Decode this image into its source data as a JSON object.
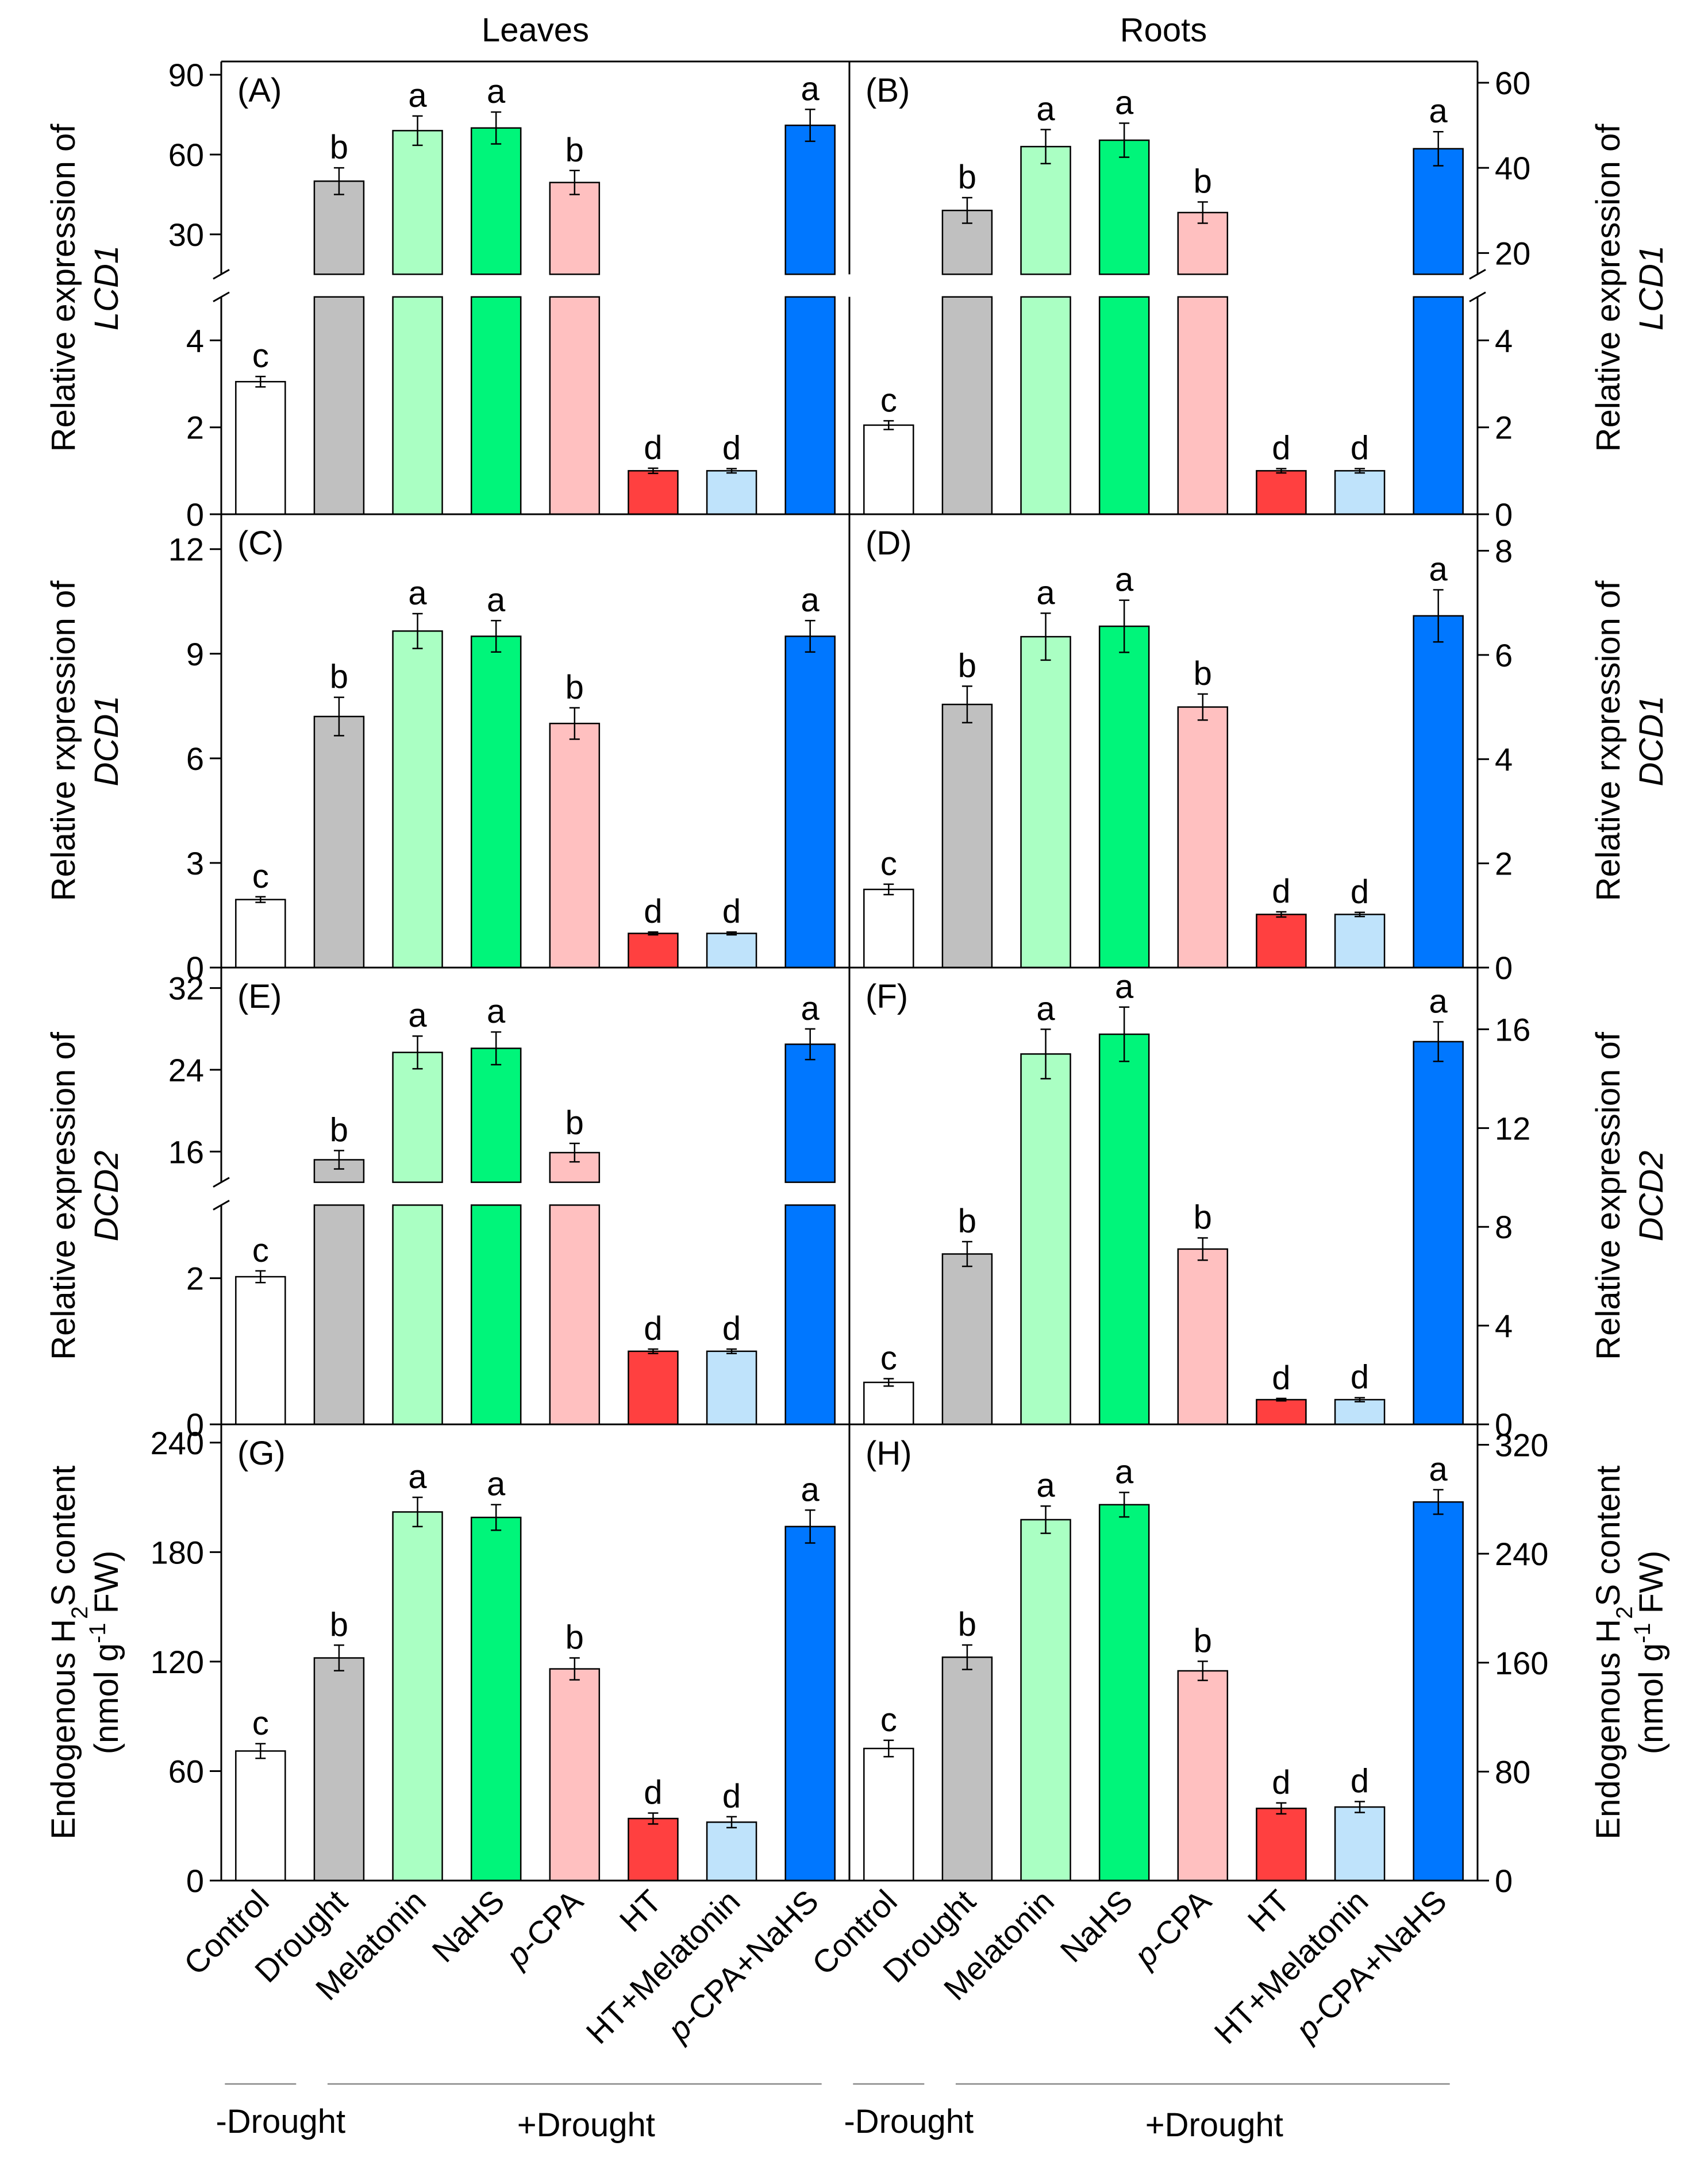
{
  "columns": [
    {
      "id": "leaves",
      "title": "Leaves"
    },
    {
      "id": "roots",
      "title": "Roots"
    }
  ],
  "categories": [
    "Control",
    "Drought",
    "Melatonin",
    "NaHS",
    "p-CPA",
    "HT",
    "HT+Melatonin",
    "p-CPA+NaHS"
  ],
  "category_labels": [
    {
      "prefix": "",
      "italic": "",
      "rest": "Control"
    },
    {
      "prefix": "",
      "italic": "",
      "rest": "Drought"
    },
    {
      "prefix": "",
      "italic": "",
      "rest": "Melatonin"
    },
    {
      "prefix": "",
      "italic": "",
      "rest": "NaHS"
    },
    {
      "prefix": "",
      "italic": "p",
      "rest": "-CPA"
    },
    {
      "prefix": "",
      "italic": "",
      "rest": "HT"
    },
    {
      "prefix": "",
      "italic": "",
      "rest": "HT+Melatonin"
    },
    {
      "prefix": "",
      "italic": "p",
      "rest": "-CPA+NaHS"
    }
  ],
  "colors": [
    "#ffffff",
    "#c0c0c0",
    "#aaffc3",
    "#00f57a",
    "#ffc0c0",
    "#ff4040",
    "#bfe3fb",
    "#0077ff"
  ],
  "groups": [
    {
      "column": "leaves",
      "minus": "-Drought",
      "plus": "+Drought"
    },
    {
      "column": "roots",
      "minus": "-Drought",
      "plus": "+Drought"
    }
  ],
  "ylabels": [
    {
      "row": 0,
      "side": "left",
      "lines": [
        "Relative expression of",
        "LCD1"
      ]
    },
    {
      "row": 0,
      "side": "right",
      "lines": [
        "Relative expression of",
        "LCD1"
      ]
    },
    {
      "row": 1,
      "side": "left",
      "lines": [
        "Relative rxpression of",
        "DCD1"
      ]
    },
    {
      "row": 1,
      "side": "right",
      "lines": [
        "Relative rxpression of",
        "DCD1"
      ]
    },
    {
      "row": 2,
      "side": "left",
      "lines": [
        "Relative expression of",
        "DCD2"
      ]
    },
    {
      "row": 2,
      "side": "right",
      "lines": [
        "Relative expression of",
        "DCD2"
      ]
    },
    {
      "row": 3,
      "side": "left",
      "lines": [
        "Endogenous H2S content",
        "(nmol g-1 FW)"
      ]
    },
    {
      "row": 3,
      "side": "right",
      "lines": [
        "Endogenous H2S content",
        "(nmol g-1 FW)"
      ]
    }
  ],
  "chart_data": [
    {
      "panel": "(A)",
      "row": 0,
      "col": 0,
      "type": "bar",
      "broken_axis": {
        "lower": [
          0,
          5
        ],
        "upper": [
          15,
          95
        ]
      },
      "lower_ticks": [
        0,
        2,
        4
      ],
      "upper_ticks": [
        30,
        60,
        90
      ],
      "values": [
        3.05,
        50,
        69,
        70,
        49.5,
        1.0,
        1.0,
        71
      ],
      "errors": [
        0.12,
        5,
        5.5,
        6,
        4.5,
        0.06,
        0.05,
        6
      ],
      "letters": [
        "c",
        "b",
        "a",
        "a",
        "b",
        "d",
        "d",
        "a"
      ]
    },
    {
      "panel": "(B)",
      "row": 0,
      "col": 1,
      "type": "bar",
      "broken_axis": {
        "lower": [
          0,
          5
        ],
        "upper": [
          15,
          65
        ]
      },
      "lower_ticks": [
        0,
        2,
        4
      ],
      "upper_ticks": [
        20,
        40,
        60
      ],
      "values": [
        2.05,
        30,
        45,
        46.5,
        29.5,
        1.0,
        1.0,
        44.5
      ],
      "errors": [
        0.1,
        3,
        4,
        4,
        2.5,
        0.05,
        0.05,
        4
      ],
      "letters": [
        "c",
        "b",
        "a",
        "a",
        "b",
        "d",
        "d",
        "a"
      ]
    },
    {
      "panel": "(C)",
      "row": 1,
      "col": 0,
      "type": "bar",
      "ylim": [
        0,
        13
      ],
      "ticks": [
        0,
        3,
        6,
        9,
        12
      ],
      "values": [
        1.95,
        7.2,
        9.65,
        9.5,
        7.0,
        0.98,
        0.98,
        9.5
      ],
      "errors": [
        0.08,
        0.55,
        0.5,
        0.45,
        0.45,
        0.04,
        0.04,
        0.45
      ],
      "letters": [
        "c",
        "b",
        "a",
        "a",
        "b",
        "d",
        "d",
        "a"
      ]
    },
    {
      "panel": "(D)",
      "row": 1,
      "col": 1,
      "type": "bar",
      "ylim": [
        0,
        8.7
      ],
      "ticks": [
        0,
        2,
        4,
        6,
        8
      ],
      "values": [
        1.5,
        5.05,
        6.35,
        6.55,
        5.0,
        1.02,
        1.02,
        6.75
      ],
      "errors": [
        0.1,
        0.35,
        0.45,
        0.5,
        0.25,
        0.05,
        0.04,
        0.5
      ],
      "letters": [
        "c",
        "b",
        "a",
        "a",
        "b",
        "d",
        "d",
        "a"
      ]
    },
    {
      "panel": "(E)",
      "row": 2,
      "col": 0,
      "type": "bar",
      "broken_axis": {
        "lower": [
          0,
          3
        ],
        "upper": [
          13,
          34
        ]
      },
      "lower_ticks": [
        0,
        2
      ],
      "upper_ticks": [
        16,
        24,
        32
      ],
      "values": [
        2.02,
        15.2,
        25.7,
        26.1,
        15.9,
        1.0,
        1.0,
        26.5
      ],
      "errors": [
        0.08,
        0.9,
        1.6,
        1.6,
        0.9,
        0.03,
        0.03,
        1.5
      ],
      "letters": [
        "c",
        "b",
        "a",
        "a",
        "b",
        "d",
        "d",
        "a"
      ]
    },
    {
      "panel": "(F)",
      "row": 2,
      "col": 1,
      "type": "bar",
      "ylim": [
        0,
        18.5
      ],
      "ticks": [
        0,
        4,
        8,
        12,
        16
      ],
      "values": [
        1.7,
        6.9,
        15.0,
        15.8,
        7.1,
        1.0,
        1.0,
        15.5
      ],
      "errors": [
        0.15,
        0.5,
        1.0,
        1.1,
        0.45,
        0.05,
        0.08,
        0.8
      ],
      "letters": [
        "c",
        "b",
        "a",
        "a",
        "b",
        "d",
        "d",
        "a"
      ]
    },
    {
      "panel": "(G)",
      "row": 3,
      "col": 0,
      "type": "bar",
      "ylim": [
        0,
        250
      ],
      "ticks": [
        0,
        60,
        120,
        180,
        240
      ],
      "values": [
        71,
        122,
        202,
        199,
        116,
        34,
        32,
        194
      ],
      "errors": [
        4,
        7,
        8,
        7,
        6,
        3,
        3,
        9
      ],
      "letters": [
        "c",
        "b",
        "a",
        "a",
        "b",
        "d",
        "d",
        "a"
      ]
    },
    {
      "panel": "(H)",
      "row": 3,
      "col": 1,
      "type": "bar",
      "ylim": [
        0,
        335
      ],
      "ticks": [
        0,
        80,
        160,
        240,
        320
      ],
      "values": [
        97,
        164,
        265,
        276,
        154,
        53,
        54,
        278
      ],
      "errors": [
        6,
        9,
        10,
        9,
        7,
        4,
        4,
        9
      ],
      "letters": [
        "c",
        "b",
        "a",
        "a",
        "b",
        "d",
        "d",
        "a"
      ]
    }
  ]
}
